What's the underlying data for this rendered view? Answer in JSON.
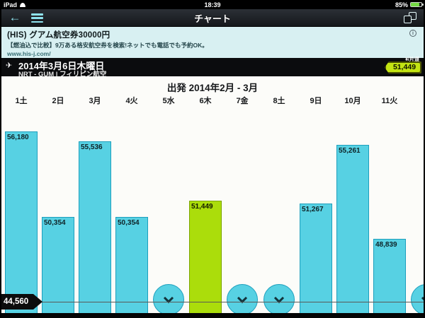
{
  "status_bar": {
    "carrier": "iPad",
    "time": "18:39",
    "battery": "85%"
  },
  "nav_bar": {
    "title": "チャート"
  },
  "ad": {
    "headline": "(HIS) グアム航空券30000円",
    "body": "【燃油込で比較】9万ある格安航空券を検索!ネットでも電話でも予約OK。",
    "url": "www.his-j.com/",
    "info_icon": "i"
  },
  "flight_bar": {
    "date": "2014年3月6日木曜日",
    "route": "NRT - GUM | フィリピン航空",
    "price_unit": "¥/片道",
    "price_badge": "51,449"
  },
  "chart_data": {
    "type": "bar",
    "title": "出発 2014年2月 - 3月",
    "categories": [
      "1土",
      "2日",
      "3月",
      "4火",
      "5水",
      "6木",
      "7金",
      "8土",
      "9日",
      "10月",
      "11火",
      ""
    ],
    "values": [
      56180,
      50354,
      55536,
      50354,
      null,
      51449,
      null,
      null,
      51267,
      55261,
      48839,
      null
    ],
    "selected_index": 5,
    "selected_value": 51449,
    "min_price": 44560,
    "min_price_label": "44,560",
    "null_means": "price not loaded (tap chevron circle)",
    "ylim": [
      44560,
      57500
    ],
    "colors": {
      "bar": "#57d1e3",
      "bar_border": "#1d9fbd",
      "selected_bar": "#abdd0b",
      "selected_border": "#7ca500",
      "badge": "#c3e413",
      "ad_background": "#d8f0f2"
    }
  }
}
